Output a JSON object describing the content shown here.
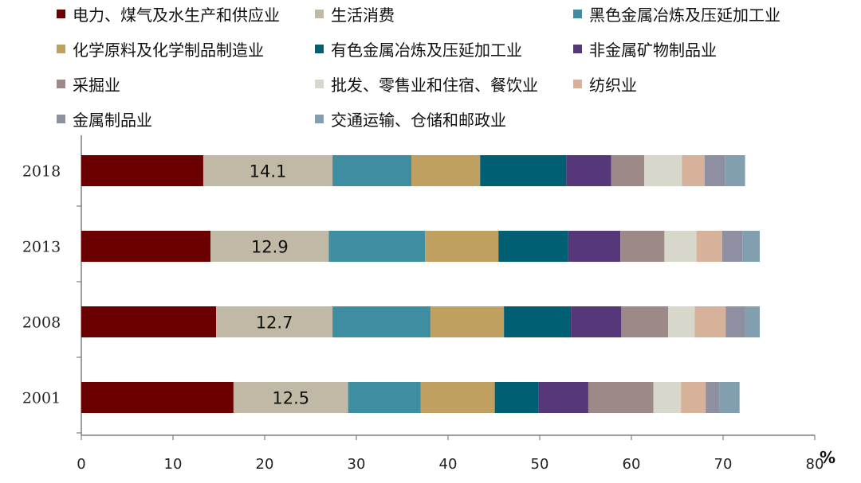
{
  "chart_data": {
    "type": "bar",
    "orientation": "horizontal",
    "stacked": true,
    "title": "",
    "xlabel": "",
    "ylabel": "",
    "unit": "%",
    "xlim": [
      0,
      80
    ],
    "x_ticks": [
      0,
      10,
      20,
      30,
      40,
      50,
      60,
      70,
      80
    ],
    "grid": false,
    "legend_position": "top",
    "categories": [
      "2018",
      "2013",
      "2008",
      "2001"
    ],
    "series": [
      {
        "name": "电力、煤气及水生产和供应业",
        "color": "#6b0000",
        "values": [
          13.3,
          14.1,
          14.7,
          16.6
        ]
      },
      {
        "name": "生活消费",
        "color": "#bfb9a5",
        "values": [
          14.1,
          12.9,
          12.7,
          12.5
        ],
        "labels": [
          "14.1",
          "12.9",
          "12.7",
          "12.5"
        ]
      },
      {
        "name": "黑色金属冶炼及压延加工业",
        "color": "#3f8da1",
        "values": [
          8.6,
          10.5,
          10.7,
          7.9
        ]
      },
      {
        "name": "化学原料及化学制品制造业",
        "color": "#c0a060",
        "values": [
          7.5,
          8.0,
          8.0,
          8.1
        ]
      },
      {
        "name": "有色金属冶炼及压延加工业",
        "color": "#005f73",
        "values": [
          9.4,
          7.6,
          7.3,
          4.8
        ]
      },
      {
        "name": "非金属矿物制品业",
        "color": "#56377a",
        "values": [
          4.9,
          5.7,
          5.5,
          5.4
        ]
      },
      {
        "name": "采掘业",
        "color": "#9e8989",
        "values": [
          3.6,
          4.8,
          5.1,
          7.1
        ]
      },
      {
        "name": "批发、零售业和住宿、餐饮业",
        "color": "#d8d7cc",
        "values": [
          4.1,
          3.5,
          2.9,
          3.0
        ]
      },
      {
        "name": "纺织业",
        "color": "#d7b29a",
        "values": [
          2.5,
          2.8,
          3.4,
          2.7
        ]
      },
      {
        "name": "金属制品业",
        "color": "#8e90a2",
        "values": [
          2.2,
          2.2,
          2.1,
          1.5
        ]
      },
      {
        "name": "交通运输、仓储和邮政业",
        "color": "#829faf",
        "values": [
          2.2,
          1.9,
          1.6,
          2.2
        ]
      }
    ]
  }
}
